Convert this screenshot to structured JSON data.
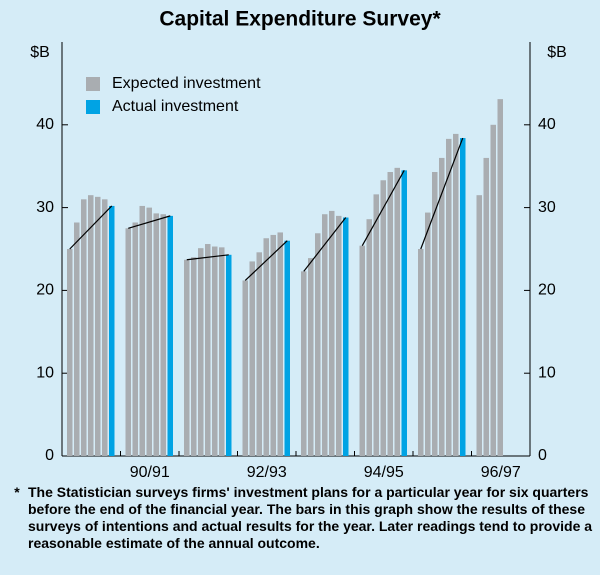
{
  "chart_data": {
    "type": "grouped-bar",
    "title": "Capital Expenditure Survey*",
    "y_label": "$B",
    "y2_label": "$B",
    "categories": [
      null,
      "90/91",
      null,
      "92/93",
      null,
      "94/95",
      null,
      "96/97"
    ],
    "series": [
      {
        "name": "Expected investment",
        "color": "#a9adb1",
        "values": [
          [
            25.0,
            28.2,
            31.0,
            31.5,
            31.3,
            31.0
          ],
          [
            27.5,
            28.2,
            30.2,
            30.0,
            29.3,
            29.2
          ],
          [
            23.7,
            24.0,
            25.1,
            25.6,
            25.3,
            25.2
          ],
          [
            21.2,
            23.5,
            24.6,
            26.3,
            26.7,
            27.0
          ],
          [
            22.3,
            23.9,
            26.9,
            29.2,
            29.6,
            29.0
          ],
          [
            25.4,
            28.6,
            31.6,
            33.3,
            34.3,
            34.8
          ],
          [
            25.0,
            29.4,
            34.3,
            36.0,
            38.3,
            38.9
          ],
          [
            31.5,
            36.0,
            40.0,
            43.1
          ]
        ]
      },
      {
        "name": "Actual investment",
        "color": "#00a3e4",
        "values": [
          30.2,
          29.0,
          24.3,
          26.0,
          28.8,
          34.5,
          38.4,
          null
        ]
      }
    ],
    "line_color": "#000000",
    "ylim": [
      0,
      50
    ],
    "yticks": [
      0,
      10,
      20,
      30,
      40
    ],
    "y2lim": [
      0,
      50
    ],
    "y2ticks": [
      0,
      10,
      20,
      30,
      40
    ],
    "footnote_marker": "*",
    "footnote": "The Statistician surveys firms' investment plans for a particular year for six quarters before the end of the financial year.  The bars in this graph show the results of these surveys of intentions and actual results for the year.  Later readings tend to provide a reasonable estimate of the annual outcome."
  }
}
